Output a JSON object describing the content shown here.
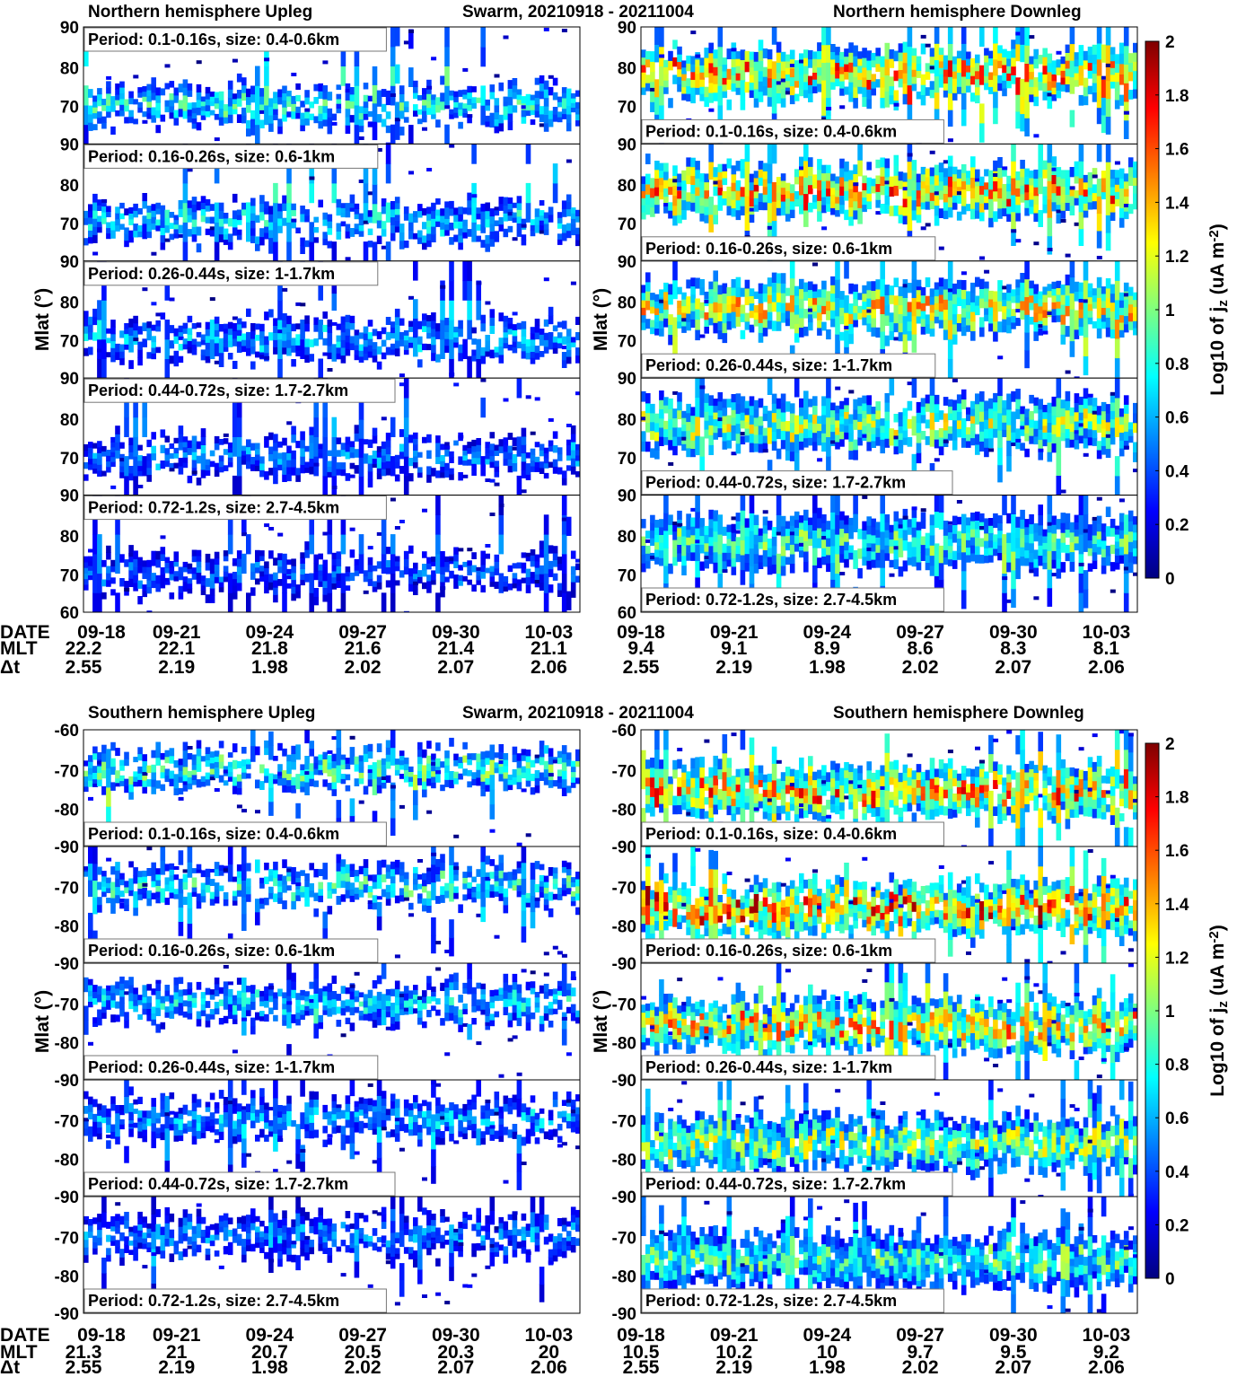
{
  "colorbar": {
    "label_main": "Log10 of j",
    "label_sub": "z",
    "label_unit": " (uA m",
    "label_exp": "-2",
    "label_close": ")",
    "ticks": [
      "0",
      "0.2",
      "0.4",
      "0.6",
      "0.8",
      "1",
      "1.2",
      "1.4",
      "1.6",
      "1.8",
      "2"
    ],
    "colors": [
      "#00007f",
      "#0000ff",
      "#007fff",
      "#00ffff",
      "#7fff7f",
      "#ffff00",
      "#ff7f00",
      "#ff0000",
      "#7f0000"
    ]
  },
  "figures": [
    {
      "id": "north",
      "title_center": "Swarm,  20210918 - 20211004",
      "left_title": "Northern hemisphere   Upleg",
      "right_title": "Northern hemisphere    Downleg",
      "ylabel": "Mlat (°)",
      "left_yticks": [
        [
          "90",
          "80",
          "70"
        ],
        [
          "90",
          "80",
          "70"
        ],
        [
          "90",
          "80",
          "70"
        ],
        [
          "90",
          "80",
          "70"
        ],
        [
          "90",
          "80",
          "70",
          "60"
        ]
      ],
      "right_yticks": [
        [
          "90",
          "80",
          "70"
        ],
        [
          "90",
          "80",
          "70"
        ],
        [
          "90",
          "80",
          "70"
        ],
        [
          "90",
          "80",
          "70"
        ],
        [
          "90",
          "80",
          "70",
          "60"
        ]
      ],
      "x_rows": [
        {
          "label": "DATE",
          "left": [
            "09-18",
            "09-21",
            "09-24",
            "09-27",
            "09-30",
            "10-03"
          ],
          "right": [
            "09-18",
            "09-21",
            "09-24",
            "09-27",
            "09-30",
            "10-03"
          ]
        },
        {
          "label": "MLT",
          "left": [
            "22.2",
            "22.1",
            "21.8",
            "21.6",
            "21.4",
            "21.1"
          ],
          "right": [
            "9.4",
            "9.1",
            "8.9",
            "8.6",
            "8.3",
            "8.1"
          ]
        },
        {
          "label": "Δt",
          "left": [
            "2.55",
            "2.19",
            "1.98",
            "2.02",
            "2.07",
            "2.06"
          ],
          "right": [
            "2.55",
            "2.19",
            "1.98",
            "2.02",
            "2.07",
            "2.06"
          ]
        }
      ]
    },
    {
      "id": "south",
      "title_center": "Swarm,  20210918 - 20211004",
      "left_title": "Southern hemisphere   Upleg",
      "right_title": "Southern hemisphere     Downleg",
      "ylabel": "Mlat (°)",
      "left_yticks": [
        [
          "-60",
          "-70",
          "-80"
        ],
        [
          "-90",
          "-70",
          "-80"
        ],
        [
          "-90",
          "-70",
          "-80"
        ],
        [
          "-90",
          "-70",
          "-80"
        ],
        [
          "-90",
          "-70",
          "-80",
          "-90"
        ]
      ],
      "right_yticks": [
        [
          "-60",
          "-70",
          "-80"
        ],
        [
          "-90",
          "-70",
          "-80"
        ],
        [
          "-90",
          "-70",
          "-80"
        ],
        [
          "-90",
          "-70",
          "-80"
        ],
        [
          "-90",
          "-70",
          "-80",
          "-90"
        ]
      ],
      "x_rows": [
        {
          "label": "DATE",
          "left": [
            "09-18",
            "09-21",
            "09-24",
            "09-27",
            "09-30",
            "10-03"
          ],
          "right": [
            "09-18",
            "09-21",
            "09-24",
            "09-27",
            "09-30",
            "10-03"
          ]
        },
        {
          "label": "MLT",
          "left": [
            "21.3",
            "21",
            "20.7",
            "20.5",
            "20.3",
            "20"
          ],
          "right": [
            "10.5",
            "10.2",
            "10",
            "9.7",
            "9.5",
            "9.2"
          ]
        },
        {
          "label": "Δt",
          "left": [
            "2.55",
            "2.19",
            "1.98",
            "2.02",
            "2.07",
            "2.06"
          ],
          "right": [
            "2.55",
            "2.19",
            "1.98",
            "2.02",
            "2.07",
            "2.06"
          ]
        }
      ]
    }
  ],
  "chart_data": {
    "type": "heatmap",
    "variable": "Log10 of jz (uA m-2)",
    "color_range": [
      0,
      2
    ],
    "period_labels": [
      "Period: 0.1-0.16s, size: 0.4-0.6km",
      "Period: 0.16-0.26s, size: 0.6-1km",
      "Period: 0.26-0.44s, size: 1-1.7km",
      "Period: 0.44-0.72s, size: 1.7-2.7km",
      "Period: 0.72-1.2s, size: 2.7-4.5km"
    ],
    "north_ylim": [
      60,
      90
    ],
    "south_ylim": [
      -90,
      -60
    ],
    "x_range": [
      "2021-09-18",
      "2021-10-04"
    ],
    "panels": [
      {
        "hemisphere": "north",
        "leg": "upleg",
        "band_center_lat": 70,
        "peak_level": [
          0.9,
          0.8,
          0.7,
          0.6,
          0.5
        ]
      },
      {
        "hemisphere": "north",
        "leg": "downleg",
        "band_center_lat": 78,
        "peak_level": [
          1.6,
          1.6,
          1.4,
          1.2,
          1.0
        ]
      },
      {
        "hemisphere": "south",
        "leg": "upleg",
        "band_center_lat": -70,
        "peak_level": [
          1.0,
          0.9,
          0.8,
          0.7,
          0.6
        ]
      },
      {
        "hemisphere": "south",
        "leg": "downleg",
        "band_center_lat": -76,
        "peak_level": [
          1.6,
          1.7,
          1.5,
          1.2,
          1.0
        ]
      }
    ]
  }
}
